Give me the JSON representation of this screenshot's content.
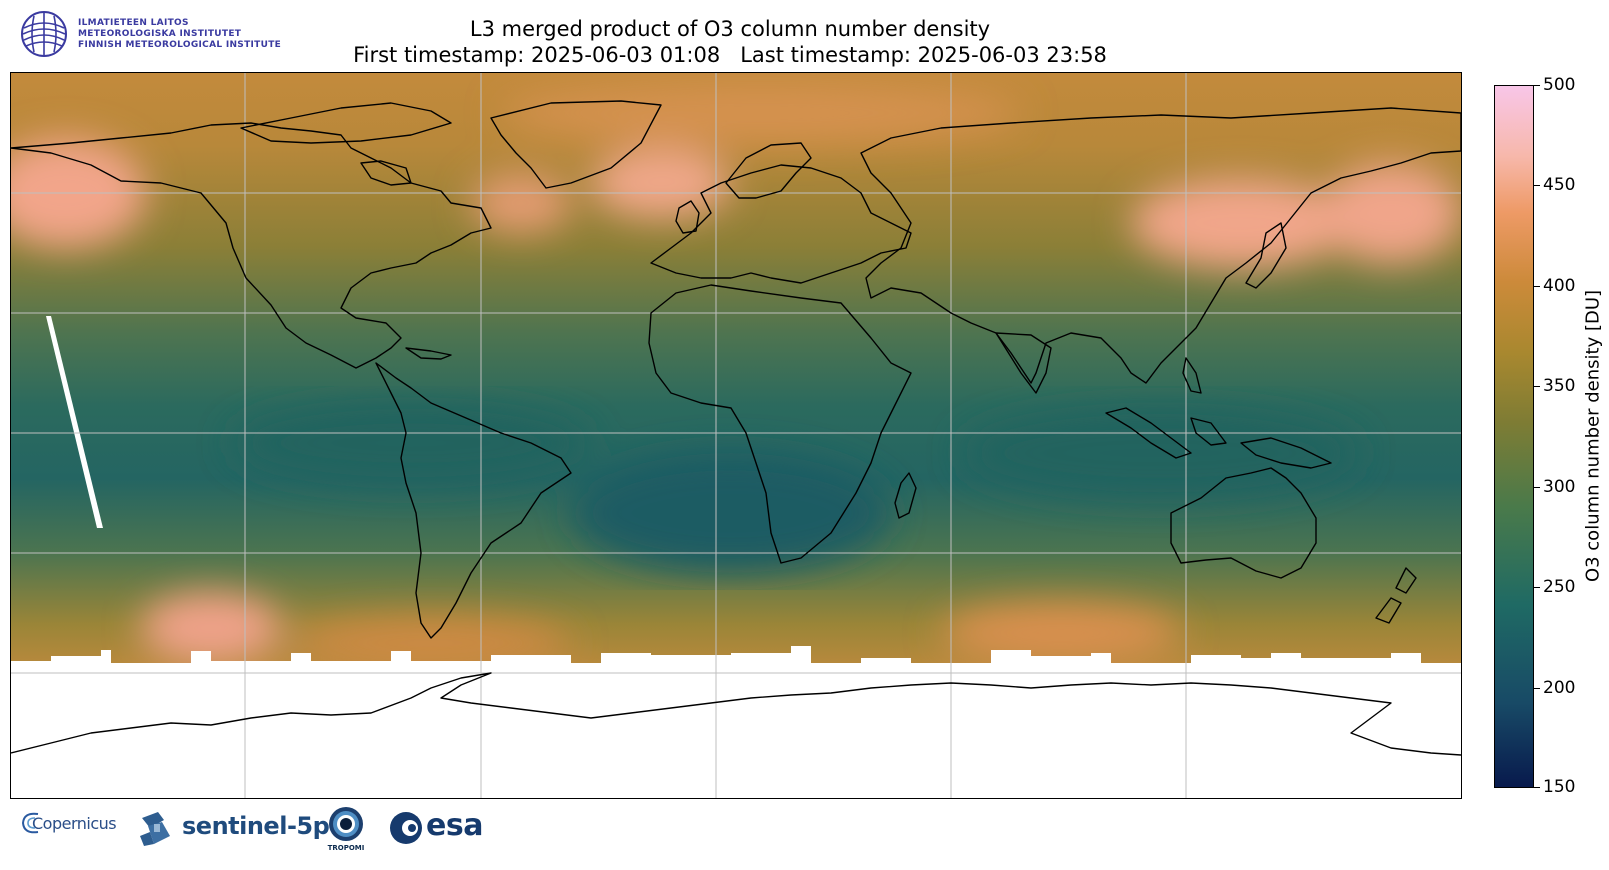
{
  "header": {
    "institute_lines": [
      "ILMATIETEEN LAITOS",
      "METEOROLOGISKA INSTITUTET",
      "FINNISH METEOROLOGICAL INSTITUTE"
    ],
    "title_line1": "L3 merged product of O3 column number density",
    "title_line2": "First timestamp: 2025-06-03 01:08   Last timestamp: 2025-06-03 23:58"
  },
  "map": {
    "projection": "equirectangular",
    "longitude_range": [
      -180,
      180
    ],
    "latitude_range": [
      -90,
      90
    ],
    "gridline_longitudes": [
      -120,
      -60,
      0,
      60,
      120
    ],
    "gridline_latitudes": [
      -60,
      -30,
      0,
      30,
      60
    ],
    "missing_data_regions": [
      "antarctic below ~60S",
      "orbit gap swath in central Pacific"
    ],
    "high_ozone_regions": [
      "Alaska / Bering",
      "North Atlantic",
      "East Asia / Japan",
      "Southern Ocean belt"
    ],
    "low_ozone_regions": [
      "Tropics"
    ]
  },
  "colorbar": {
    "title": "O3 column number density [DU]",
    "min": 150,
    "max": 500,
    "ticks": [
      "500",
      "450",
      "400",
      "350",
      "300",
      "250",
      "200",
      "150"
    ],
    "colors": {
      "150": "#081a4d",
      "200": "#1c4f68",
      "250": "#236a63",
      "300": "#6b7a3e",
      "350": "#a3872f",
      "400": "#cc8a3a",
      "450": "#f0a57c",
      "500": "#f8c6e8"
    }
  },
  "footer": {
    "logos": {
      "copernicus": "Copernicus",
      "sentinel": "sentinel-5p",
      "tropomi": "TROPOMI",
      "esa": "esa"
    }
  }
}
